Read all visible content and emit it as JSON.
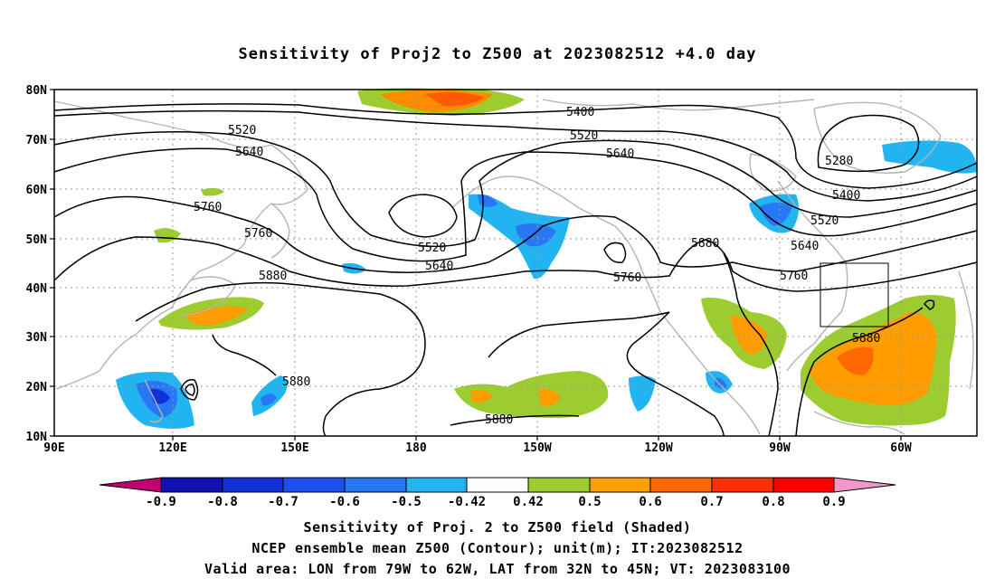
{
  "title": "Sensitivity of Proj2 to Z500 at 2023082512 +4.0 day",
  "axes": {
    "lat_ticks": [
      "80N",
      "70N",
      "60N",
      "50N",
      "40N",
      "30N",
      "20N",
      "10N"
    ],
    "lon_ticks": [
      "90E",
      "120E",
      "150E",
      "180",
      "150W",
      "120W",
      "90W",
      "60W"
    ]
  },
  "contour_labels": [
    {
      "name": "contour-label-5400-a",
      "text": "5400"
    },
    {
      "name": "contour-label-5520-a",
      "text": "5520"
    },
    {
      "name": "contour-label-5640-a",
      "text": "5640"
    },
    {
      "name": "contour-label-5760-a",
      "text": "5760"
    },
    {
      "name": "contour-label-5760-b",
      "text": "5760"
    },
    {
      "name": "contour-label-5880-a",
      "text": "5880"
    },
    {
      "name": "contour-label-5520-b",
      "text": "5520"
    },
    {
      "name": "contour-label-5640-b",
      "text": "5640"
    },
    {
      "name": "contour-label-5880-b",
      "text": "5880"
    },
    {
      "name": "contour-label-5880-c",
      "text": "5880"
    },
    {
      "name": "contour-label-5520-c",
      "text": "5520"
    },
    {
      "name": "contour-label-5640-c",
      "text": "5640"
    },
    {
      "name": "contour-label-5760-c",
      "text": "5760"
    },
    {
      "name": "contour-label-5880-d",
      "text": "5880"
    },
    {
      "name": "contour-label-5280",
      "text": "5280"
    },
    {
      "name": "contour-label-5400-b",
      "text": "5400"
    },
    {
      "name": "contour-label-5520-d",
      "text": "5520"
    },
    {
      "name": "contour-label-5640-d",
      "text": "5640"
    },
    {
      "name": "contour-label-5760-d",
      "text": "5760"
    },
    {
      "name": "contour-label-5880-e",
      "text": "5880"
    }
  ],
  "colorbar": {
    "labels": [
      "-0.9",
      "-0.8",
      "-0.7",
      "-0.6",
      "-0.5",
      "-0.42",
      "0.42",
      "0.5",
      "0.6",
      "0.7",
      "0.8",
      "0.9"
    ],
    "colors": [
      "#c0006e",
      "#1010b0",
      "#1030d8",
      "#1e50f0",
      "#2878f5",
      "#22b4f0",
      "#ffffff",
      "#9ccc30",
      "#ffa000",
      "#ff6800",
      "#ff3000",
      "#ff0000",
      "#f098c8"
    ]
  },
  "captions": {
    "line1": "Sensitivity of Proj. 2 to Z500 field (Shaded)",
    "line2": "NCEP ensemble mean Z500 (Contour); unit(m); IT:2023082512",
    "line3": "Valid area: LON from 79W to 62W, LAT from 32N to 45N; VT: 2023083100"
  }
}
